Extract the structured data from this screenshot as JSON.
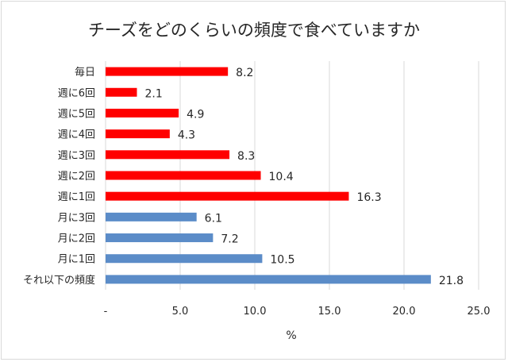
{
  "chart_data": {
    "type": "bar",
    "orientation": "horizontal",
    "title": "チーズをどのくらいの頻度で食べていますか",
    "xlabel": "%",
    "ylabel": "",
    "xlim": [
      0,
      25
    ],
    "x_ticks": [
      0,
      5,
      10,
      15,
      20,
      25
    ],
    "x_tick_labels": [
      "-",
      "5.0",
      "10.0",
      "15.0",
      "20.0",
      "25.0"
    ],
    "grid": "vertical",
    "legend": "none",
    "categories": [
      "毎日",
      "週に6回",
      "週に5回",
      "週に4回",
      "週に3回",
      "週に2回",
      "週に1回",
      "月に3回",
      "月に2回",
      "月に1回",
      "それ以下の頻度"
    ],
    "values": [
      8.2,
      2.1,
      4.9,
      4.3,
      8.3,
      10.4,
      16.3,
      6.1,
      7.2,
      10.5,
      21.8
    ],
    "value_labels": [
      "8.2",
      "2.1",
      "4.9",
      "4.3",
      "8.3",
      "10.4",
      "16.3",
      "6.1",
      "7.2",
      "10.5",
      "21.8"
    ],
    "bar_colors": [
      "#ff0000",
      "#ff0000",
      "#ff0000",
      "#ff0000",
      "#ff0000",
      "#ff0000",
      "#ff0000",
      "#5b8cc8",
      "#5b8cc8",
      "#5b8cc8",
      "#5b8cc8"
    ],
    "gridline_color": "#d9d9d9"
  }
}
